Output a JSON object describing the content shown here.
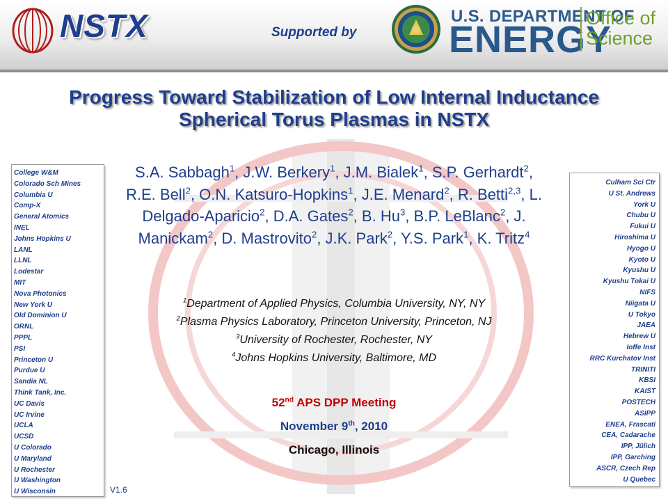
{
  "header": {
    "logo_text": "NSTX",
    "supported_by": "Supported by",
    "doe_line1": "U.S. DEPARTMENT OF",
    "doe_line2": "ENERGY",
    "office_line1": "Office of",
    "office_line2": "Science"
  },
  "title": {
    "line1": "Progress Toward Stabilization of Low Internal Inductance",
    "line2": "Spherical Torus Plasmas in NSTX"
  },
  "authors": [
    {
      "name": "S.A. Sabbagh",
      "sup": "1"
    },
    {
      "name": "J.W. Berkery",
      "sup": "1"
    },
    {
      "name": "J.M. Bialek",
      "sup": "1"
    },
    {
      "name": "S.P. Gerhardt",
      "sup": "2"
    },
    {
      "name": "R.E. Bell",
      "sup": "2"
    },
    {
      "name": "O.N. Katsuro-Hopkins",
      "sup": "1"
    },
    {
      "name": "J.E. Menard",
      "sup": "2"
    },
    {
      "name": "R. Betti",
      "sup": "2,3"
    },
    {
      "name": "L. Delgado-Aparicio",
      "sup": "2"
    },
    {
      "name": "D.A. Gates",
      "sup": "2"
    },
    {
      "name": "B. Hu",
      "sup": "3"
    },
    {
      "name": "B.P. LeBlanc",
      "sup": "2"
    },
    {
      "name": "J. Manickam",
      "sup": "2"
    },
    {
      "name": "D. Mastrovito",
      "sup": "2"
    },
    {
      "name": "J.K. Park",
      "sup": "2"
    },
    {
      "name": "Y.S. Park",
      "sup": "1"
    },
    {
      "name": "K. Tritz",
      "sup": "4"
    }
  ],
  "affiliations": [
    {
      "sup": "1",
      "text": "Department of Applied Physics, Columbia University, NY, NY"
    },
    {
      "sup": "2",
      "text": "Plasma Physics Laboratory, Princeton University, Princeton, NJ"
    },
    {
      "sup": "3",
      "text": "University of Rochester, Rochester, NY"
    },
    {
      "sup": "4",
      "text": "Johns Hopkins University, Baltimore, MD"
    }
  ],
  "meeting": {
    "number": "52",
    "number_sup": "nd",
    "name": " APS DPP Meeting",
    "date_pre": "November 9",
    "date_sup": "th",
    "date_post": ", 2010",
    "location": "Chicago, Illinois"
  },
  "left_institutions": [
    "College W&M",
    "Colorado Sch Mines",
    "Columbia U",
    "Comp-X",
    "General Atomics",
    "INEL",
    "Johns Hopkins U",
    "LANL",
    "LLNL",
    "Lodestar",
    "MIT",
    "Nova Photonics",
    "New York U",
    "Old Dominion U",
    "ORNL",
    "PPPL",
    "PSI",
    "Princeton U",
    "Purdue U",
    "Sandia NL",
    "Think Tank, Inc.",
    "UC Davis",
    "UC Irvine",
    "UCLA",
    "UCSD",
    "U Colorado",
    "U Maryland",
    "U Rochester",
    "U Washington",
    "U Wisconsin"
  ],
  "right_institutions": [
    "Culham Sci Ctr",
    "U St. Andrews",
    "York U",
    "Chubu U",
    "Fukui U",
    "Hiroshima U",
    "Hyogo U",
    "Kyoto U",
    "Kyushu U",
    "Kyushu Tokai U",
    "NIFS",
    "Niigata U",
    "U Tokyo",
    "JAEA",
    "Hebrew U",
    "Ioffe Inst",
    "RRC Kurchatov Inst",
    "TRINITI",
    "KBSI",
    "KAIST",
    "POSTECH",
    "ASIPP",
    "ENEA, Frascati",
    "CEA, Cadarache",
    "IPP, Jülich",
    "IPP, Garching",
    "ASCR, Czech Rep",
    "U Quebec"
  ],
  "version": "V1.6",
  "colors": {
    "brand_blue": "#1f3e8c",
    "meeting_red": "#c00000",
    "doe_blue": "#28598a",
    "office_green": "#6e9f2d"
  }
}
